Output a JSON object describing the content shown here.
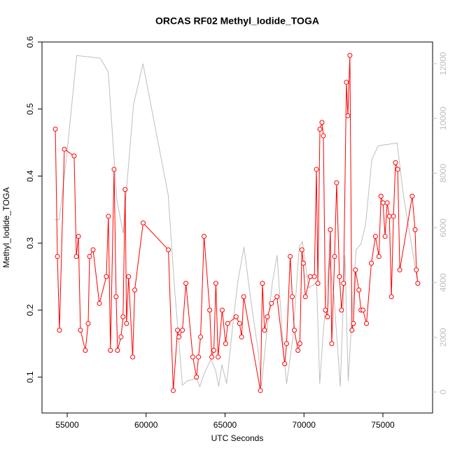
{
  "chart_data": {
    "type": "line",
    "title": "ORCAS RF02 Methyl_Iodide_TOGA",
    "x_label": "UTC Seconds",
    "y_label": "Methyl_Iodide_TOGA",
    "xlim": [
      53404,
      78149
    ],
    "ylim": [
      0.0465,
      0.6
    ],
    "y2lim": [
      -767,
      12793
    ],
    "xticks": [
      55000,
      60000,
      65000,
      70000,
      75000
    ],
    "yticks": [
      0.1,
      0.2,
      0.3,
      0.4,
      0.5,
      0.6
    ],
    "y2ticks": [
      0,
      2000,
      4000,
      6000,
      8000,
      10000,
      12000
    ],
    "series": [
      {
        "color": "#bebebe",
        "axis": "y2",
        "markers": false,
        "x": [
          54200,
          54500,
          55000,
          55600,
          57100,
          57600,
          58150,
          58550,
          58700,
          59200,
          59800,
          61400,
          61800,
          62300,
          62600,
          63200,
          63400,
          63700,
          64100,
          64400,
          64600,
          64800,
          65100,
          65500,
          65800,
          66200,
          66600,
          67100,
          67300,
          67700,
          68000,
          68300,
          68700,
          68900,
          69300,
          69700,
          69900,
          70300,
          70800,
          71000,
          71200,
          71600,
          71900,
          72300,
          72600,
          72800,
          73300,
          73600,
          73900,
          74300,
          74700,
          75900,
          76300,
          77200
        ],
        "values": [
          6300,
          6300,
          8800,
          12300,
          12200,
          11700,
          7000,
          5800,
          7000,
          10500,
          12000,
          7200,
          3800,
          250,
          400,
          500,
          200,
          700,
          1200,
          800,
          200,
          1000,
          300,
          2500,
          4000,
          5300,
          3500,
          1500,
          200,
          2500,
          4000,
          5000,
          1500,
          300,
          2000,
          5300,
          5500,
          3800,
          4000,
          300,
          2000,
          4900,
          3500,
          200,
          5000,
          400,
          5200,
          5400,
          6100,
          8500,
          9000,
          9100,
          7200,
          4000
        ]
      },
      {
        "color": "#ff0000",
        "markers": true,
        "x": [
          54250,
          54380,
          54510,
          54820,
          55440,
          55580,
          55710,
          55840,
          56150,
          56330,
          56420,
          56640,
          57040,
          57480,
          57610,
          57740,
          57970,
          58100,
          58190,
          58410,
          58540,
          58670,
          58760,
          58890,
          59150,
          59280,
          59810,
          61410,
          61720,
          61990,
          62080,
          62300,
          62520,
          62960,
          63190,
          63320,
          63450,
          63670,
          64030,
          64160,
          64290,
          64420,
          64560,
          64820,
          65040,
          65170,
          65700,
          65920,
          66050,
          66180,
          67240,
          67370,
          67500,
          67680,
          67940,
          68290,
          68780,
          68900,
          69130,
          69260,
          69390,
          69620,
          69740,
          69870,
          69960,
          70090,
          70400,
          70660,
          70790,
          70880,
          71010,
          71140,
          71230,
          71360,
          71490,
          71670,
          71760,
          71940,
          72070,
          72250,
          72380,
          72510,
          72690,
          72780,
          72910,
          73040,
          73130,
          73260,
          73480,
          73610,
          73740,
          73960,
          74270,
          74530,
          74750,
          74880,
          75010,
          75140,
          75270,
          75410,
          75540,
          75670,
          75800,
          75940,
          76070,
          76860,
          77040,
          77120,
          77210
        ],
        "values": [
          0.47,
          0.28,
          0.17,
          0.44,
          0.43,
          0.28,
          0.31,
          0.17,
          0.14,
          0.18,
          0.28,
          0.29,
          0.21,
          0.25,
          0.34,
          0.14,
          0.41,
          0.22,
          0.14,
          0.16,
          0.19,
          0.38,
          0.18,
          0.25,
          0.13,
          0.23,
          0.33,
          0.29,
          0.08,
          0.17,
          0.16,
          0.17,
          0.24,
          0.13,
          0.1,
          0.13,
          0.16,
          0.31,
          0.2,
          0.13,
          0.14,
          0.24,
          0.13,
          0.2,
          0.15,
          0.18,
          0.19,
          0.18,
          0.16,
          0.22,
          0.08,
          0.24,
          0.17,
          0.19,
          0.21,
          0.22,
          0.12,
          0.15,
          0.28,
          0.22,
          0.17,
          0.14,
          0.15,
          0.29,
          0.27,
          0.22,
          0.25,
          0.25,
          0.41,
          0.24,
          0.47,
          0.48,
          0.46,
          0.2,
          0.19,
          0.32,
          0.15,
          0.28,
          0.39,
          0.25,
          0.2,
          0.24,
          0.54,
          0.49,
          0.58,
          0.17,
          0.18,
          0.26,
          0.23,
          0.2,
          0.2,
          0.18,
          0.27,
          0.31,
          0.28,
          0.37,
          0.36,
          0.31,
          0.36,
          0.34,
          0.22,
          0.34,
          0.42,
          0.41,
          0.26,
          0.37,
          0.32,
          0.26,
          0.24
        ]
      }
    ]
  }
}
